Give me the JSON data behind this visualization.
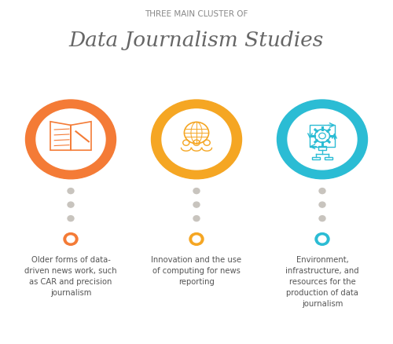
{
  "title_small": "THREE MAIN CLUSTER OF",
  "title_large": "Data Journalism Studies",
  "bg_color": "#ffffff",
  "colors": {
    "orange": "#F47B36",
    "yellow": "#F5A623",
    "teal": "#2BBCD4",
    "dot_gray": "#c8c4be",
    "text_dark": "#555555",
    "title_gray": "#888888"
  },
  "positions": [
    0.18,
    0.5,
    0.82
  ],
  "cluster_colors": [
    "#F47B36",
    "#F5A623",
    "#2BBCD4"
  ],
  "descriptions": [
    "Older forms of data-\ndriven news work, such\nas CAR and precision\njournalism",
    "Innovation and the use\nof computing for news\nreporting",
    "Environment,\ninfrastructure, and\nresources for the\nproduction of data\njournalism"
  ]
}
